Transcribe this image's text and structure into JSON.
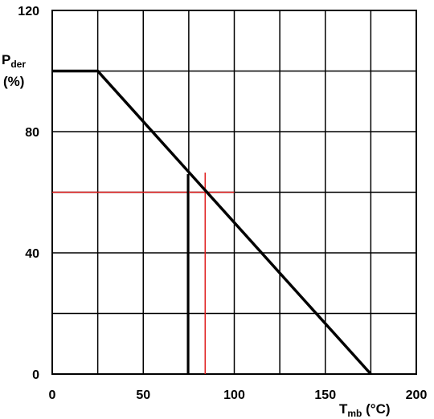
{
  "chart_data": {
    "type": "line",
    "xlabel": {
      "main": "T",
      "sub": "mb",
      "unit": " (°C)"
    },
    "ylabel": {
      "main": "P",
      "sub": "der",
      "unit": "(%)"
    },
    "xlim": [
      0,
      200
    ],
    "ylim": [
      0,
      120
    ],
    "x_ticks": [
      0,
      50,
      100,
      150,
      200
    ],
    "y_ticks": [
      0,
      40,
      80,
      120
    ],
    "x_tick_labels": [
      "0",
      "50",
      "100",
      "150",
      "200"
    ],
    "y_tick_labels": [
      "0",
      "40",
      "80",
      "120"
    ],
    "x_grid": [
      0,
      25,
      50,
      75,
      100,
      125,
      150,
      175,
      200
    ],
    "y_grid": [
      0,
      20,
      40,
      60,
      80,
      100,
      120
    ],
    "grid": true,
    "series": [
      {
        "x": [
          0,
          25,
          175
        ],
        "y": [
          100,
          100,
          0
        ],
        "color": "#000000"
      }
    ],
    "annotations": [
      {
        "type": "hline",
        "y": 60,
        "x_range": [
          0,
          100
        ],
        "color": "#e02020"
      },
      {
        "type": "vline",
        "x": 84,
        "y_range": [
          0,
          66.5
        ],
        "color": "#e02020"
      },
      {
        "type": "vline",
        "x": 74.5,
        "y_range": [
          0,
          66
        ],
        "color": "#000000"
      }
    ]
  }
}
